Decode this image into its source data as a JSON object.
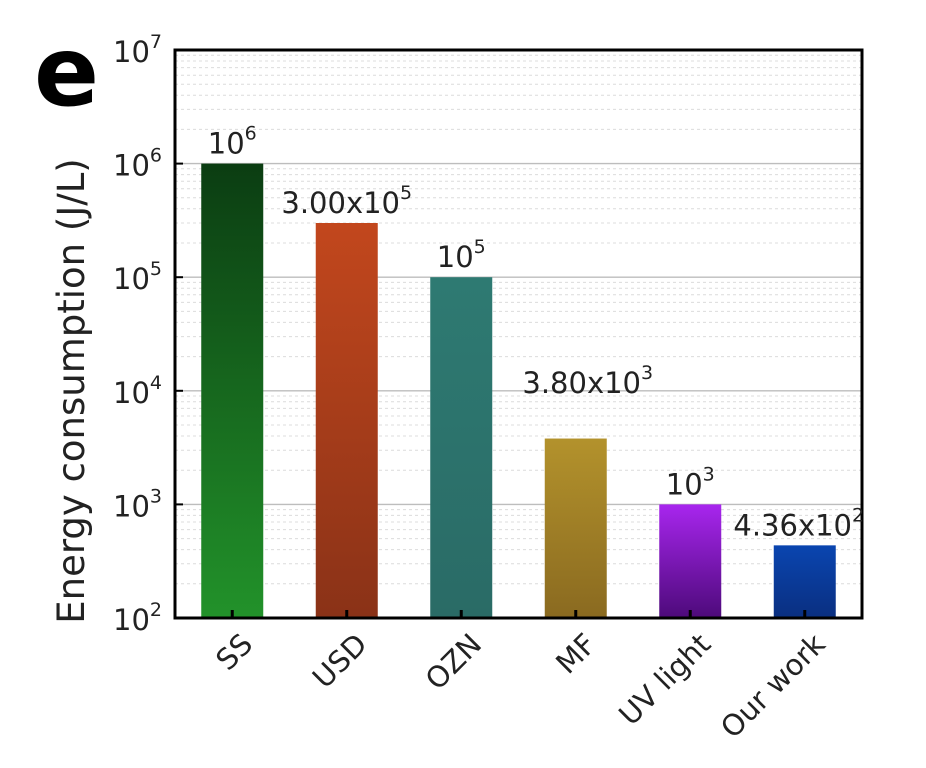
{
  "panel_letter": "e",
  "colors": {
    "SS": [
      "#0b3d12",
      "#22922a"
    ],
    "USD": [
      "#c2471d",
      "#8a3217"
    ],
    "OZN": [
      "#2e7a72",
      "#2a6b66"
    ],
    "MF": [
      "#b3922c",
      "#8a6a20"
    ],
    "UV light": [
      "#a826ee",
      "#4d0a7a"
    ],
    "Our work": [
      "#0a45b0",
      "#0a2f80"
    ]
  },
  "chart_data": {
    "type": "bar",
    "ylabel": "Energy consumption (J/L)",
    "xlabel": "",
    "yscale": "log",
    "ylim": [
      100,
      10000000
    ],
    "y_ticks": [
      {
        "base": "10",
        "exp": "2",
        "value": 100
      },
      {
        "base": "10",
        "exp": "3",
        "value": 1000
      },
      {
        "base": "10",
        "exp": "4",
        "value": 10000
      },
      {
        "base": "10",
        "exp": "5",
        "value": 100000
      },
      {
        "base": "10",
        "exp": "6",
        "value": 1000000
      },
      {
        "base": "10",
        "exp": "7",
        "value": 10000000
      }
    ],
    "categories": [
      "SS",
      "USD",
      "OZN",
      "MF",
      "UV light",
      "Our work"
    ],
    "values": [
      1000000,
      300000,
      100000,
      3800,
      1000,
      436
    ],
    "data_labels": [
      {
        "mantissa": "",
        "base": "10",
        "exp": "6"
      },
      {
        "mantissa": "3.00x",
        "base": "10",
        "exp": "5"
      },
      {
        "mantissa": "",
        "base": "10",
        "exp": "5"
      },
      {
        "mantissa": "3.80x",
        "base": "10",
        "exp": "3"
      },
      {
        "mantissa": "",
        "base": "10",
        "exp": "3"
      },
      {
        "mantissa": "4.36x",
        "base": "10",
        "exp": "2"
      }
    ],
    "grid": true,
    "minor_grid": true
  }
}
